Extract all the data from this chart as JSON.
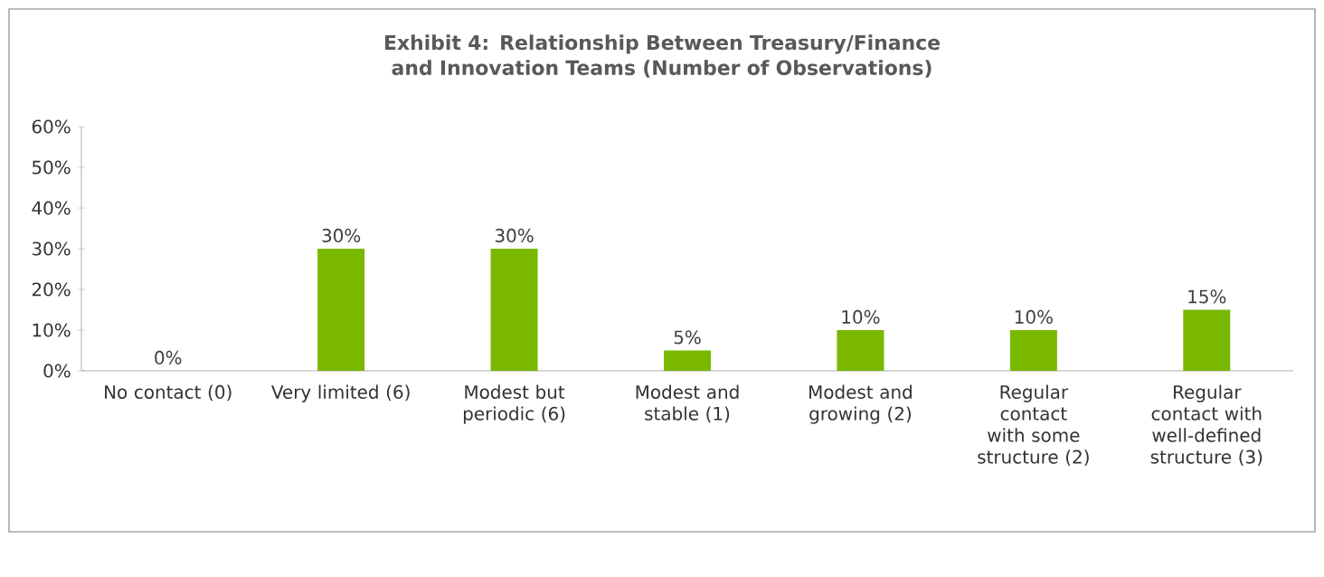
{
  "chart_data": {
    "type": "bar",
    "title": "Exhibit 4: Relationship Between Treasury/Finance and Innovation Teams (Number of Observations)",
    "categories": [
      "No contact (0)",
      "Very limited (6)",
      "Modest but periodic (6)",
      "Modest and stable (1)",
      "Modest and growing (2)",
      "Regular contact with some structure (2)",
      "Regular contact with well-defined structure (3)"
    ],
    "values": [
      0,
      30,
      30,
      5,
      10,
      10,
      15
    ],
    "value_labels": [
      "0%",
      "30%",
      "30%",
      "5%",
      "10%",
      "10%",
      "15%"
    ],
    "color": "#7ab800",
    "ylim": [
      0,
      60
    ],
    "yticks": [
      {
        "value": 0,
        "label": "0%"
      },
      {
        "value": 10,
        "label": "10%"
      },
      {
        "value": 20,
        "label": "20%"
      },
      {
        "value": 30,
        "label": "30%"
      },
      {
        "value": 40,
        "label": "40%"
      },
      {
        "value": 50,
        "label": "50%"
      },
      {
        "value": 60,
        "label": "60%"
      }
    ],
    "grid": false
  }
}
